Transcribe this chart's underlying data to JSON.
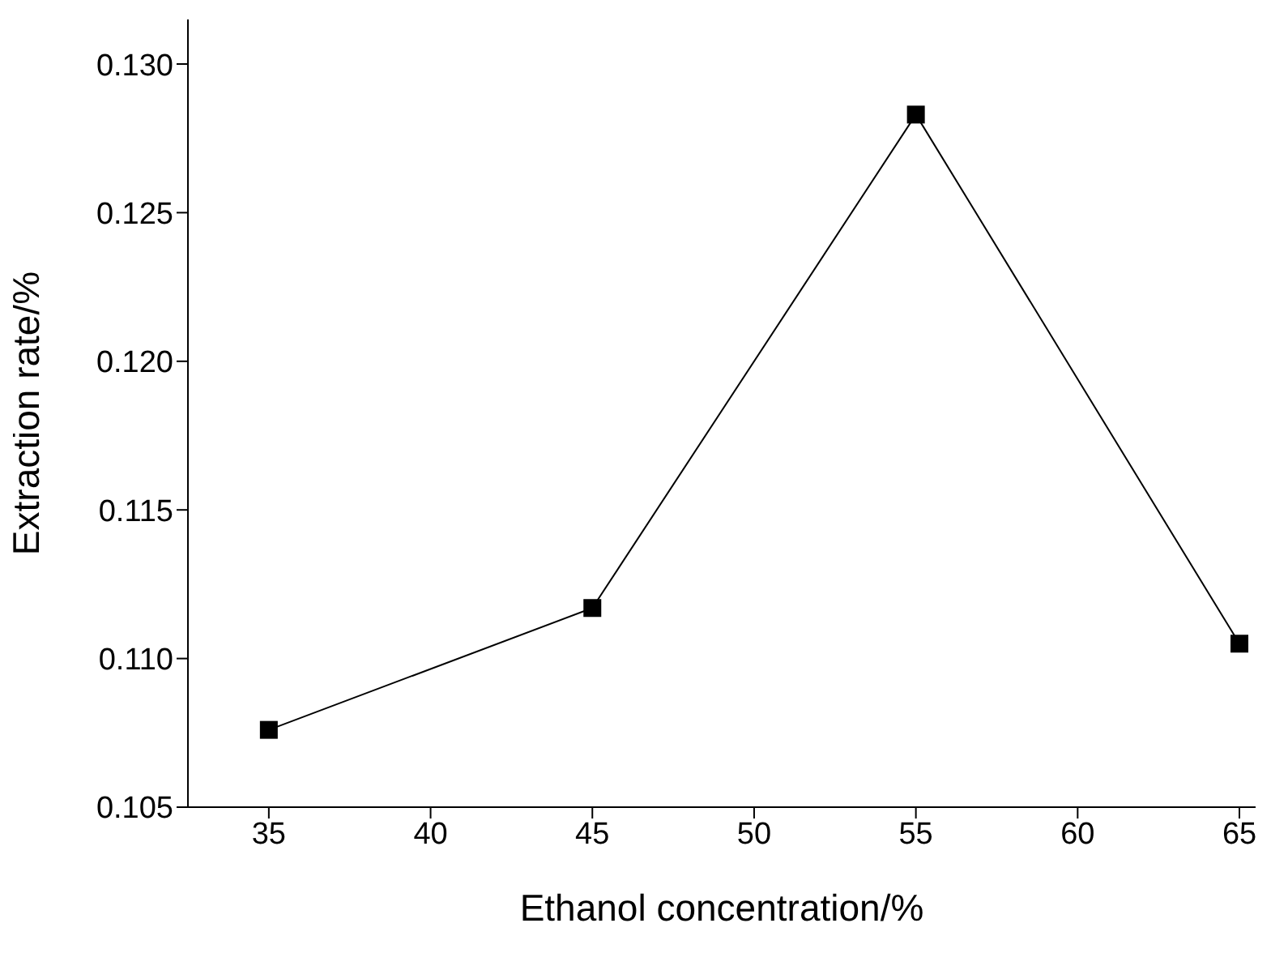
{
  "chart_data": {
    "type": "line",
    "xlabel": "Ethanol concentration/%",
    "ylabel": "Extraction rate/%",
    "x": [
      35,
      45,
      55,
      65
    ],
    "series": [
      {
        "color": "#000000",
        "values": [
          0.1076,
          0.1117,
          0.1283,
          0.1105
        ]
      }
    ],
    "xlim": [
      32.5,
      65.5
    ],
    "xticks": [
      35,
      40,
      45,
      50,
      55,
      60,
      65
    ],
    "ylim": [
      0.105,
      0.1315
    ],
    "yticks": [
      {
        "value": 0.105,
        "label": "0.105"
      },
      {
        "value": 0.11,
        "label": "0.110"
      },
      {
        "value": 0.115,
        "label": "0.115"
      },
      {
        "value": 0.12,
        "label": "0.120"
      },
      {
        "value": 0.125,
        "label": "0.125"
      },
      {
        "value": 0.13,
        "label": "0.130"
      }
    ],
    "marker": "square",
    "line_style": "solid",
    "grid": false,
    "legend": false
  }
}
